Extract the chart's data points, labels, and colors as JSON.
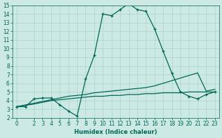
{
  "xlabel": "Humidex (Indice chaleur)",
  "bg_color": "#cce9e4",
  "grid_color": "#aad4ce",
  "line_color": "#006655",
  "xlim": [
    -0.5,
    23.5
  ],
  "ylim": [
    2,
    15
  ],
  "yticks": [
    2,
    3,
    4,
    5,
    6,
    7,
    8,
    9,
    10,
    11,
    12,
    13,
    14,
    15
  ],
  "xticks": [
    0,
    2,
    3,
    4,
    5,
    6,
    7,
    8,
    9,
    10,
    11,
    12,
    13,
    14,
    15,
    16,
    17,
    18,
    19,
    20,
    21,
    22,
    23
  ],
  "line1_x": [
    0,
    1,
    2,
    3,
    4,
    5,
    6,
    7,
    8,
    9,
    10,
    11,
    12,
    13,
    14,
    15,
    16,
    17,
    18,
    19,
    20,
    21,
    22,
    23
  ],
  "line1_y": [
    3.3,
    3.3,
    4.2,
    4.3,
    4.3,
    3.5,
    2.8,
    2.2,
    6.5,
    9.2,
    14.0,
    13.8,
    14.5,
    15.2,
    14.5,
    14.3,
    12.3,
    9.7,
    7.2,
    5.0,
    4.5,
    4.2,
    4.7,
    5.0
  ],
  "line2_x": [
    0,
    2,
    3,
    4,
    5,
    6,
    7,
    8,
    9,
    10,
    11,
    12,
    13,
    14,
    15,
    16,
    17,
    18,
    19,
    20,
    21,
    22,
    23
  ],
  "line2_y": [
    3.3,
    3.7,
    3.9,
    4.1,
    4.3,
    4.5,
    4.6,
    4.7,
    4.9,
    5.0,
    5.1,
    5.2,
    5.3,
    5.4,
    5.5,
    5.7,
    6.0,
    6.3,
    6.6,
    6.9,
    7.2,
    5.1,
    5.3
  ],
  "line3_x": [
    0,
    2,
    3,
    4,
    5,
    6,
    7,
    8,
    9,
    10,
    11,
    12,
    13,
    14,
    15,
    16,
    17,
    18,
    19,
    20,
    21,
    22,
    23
  ],
  "line3_y": [
    3.3,
    3.6,
    3.8,
    4.0,
    4.1,
    4.2,
    4.3,
    4.4,
    4.5,
    4.5,
    4.6,
    4.6,
    4.7,
    4.7,
    4.8,
    4.8,
    4.9,
    4.9,
    4.9,
    5.0,
    5.0,
    5.0,
    5.0
  ]
}
